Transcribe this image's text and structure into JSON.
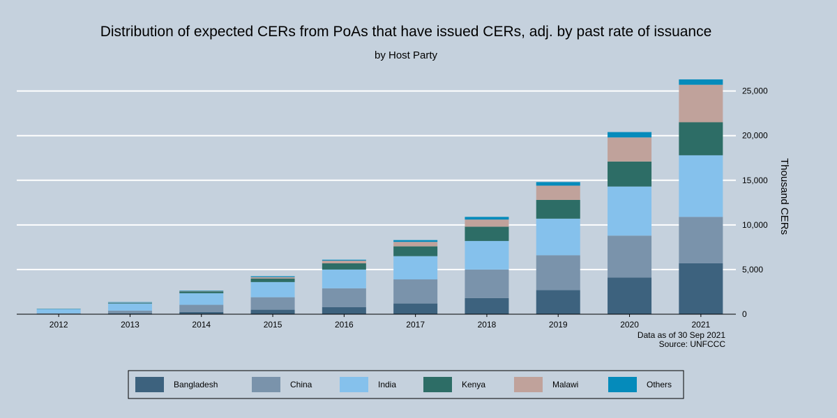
{
  "chart_data": {
    "type": "bar",
    "stacked": true,
    "title": "Distribution of expected CERs from PoAs that have issued CERs, adj. by past rate of issuance",
    "subtitle": "by Host Party",
    "xlabel": "",
    "ylabel": "Thousand CERs",
    "ylim": [
      0,
      27000
    ],
    "yticks": [
      0,
      5000,
      10000,
      15000,
      20000,
      25000
    ],
    "ytick_labels": [
      "0",
      "5,000",
      "10,000",
      "15,000",
      "20,000",
      "25,000"
    ],
    "grid": true,
    "legend_position": "bottom",
    "categories": [
      "2012",
      "2013",
      "2014",
      "2015",
      "2016",
      "2017",
      "2018",
      "2019",
      "2020",
      "2021"
    ],
    "series": [
      {
        "name": "Bangladesh",
        "color": "#3d627e",
        "values": [
          0,
          100,
          250,
          500,
          800,
          1200,
          1800,
          2700,
          4100,
          5700
        ]
      },
      {
        "name": "China",
        "color": "#7a93ab",
        "values": [
          100,
          300,
          800,
          1400,
          2100,
          2700,
          3200,
          3900,
          4700,
          5200
        ]
      },
      {
        "name": "India",
        "color": "#85c1ec",
        "values": [
          450,
          800,
          1300,
          1700,
          2100,
          2600,
          3200,
          4100,
          5500,
          6900
        ]
      },
      {
        "name": "Kenya",
        "color": "#2d6d66",
        "values": [
          20,
          70,
          200,
          400,
          700,
          1100,
          1600,
          2100,
          2800,
          3700
        ]
      },
      {
        "name": "Malawi",
        "color": "#c0a29b",
        "values": [
          0,
          30,
          50,
          150,
          300,
          500,
          800,
          1600,
          2700,
          4200
        ]
      },
      {
        "name": "Others",
        "color": "#058bbb",
        "values": [
          30,
          50,
          50,
          100,
          100,
          200,
          300,
          400,
          600,
          600
        ]
      }
    ],
    "annotations": [
      "Data as of 30 Sep 2021",
      "Source: UNFCCC"
    ]
  }
}
